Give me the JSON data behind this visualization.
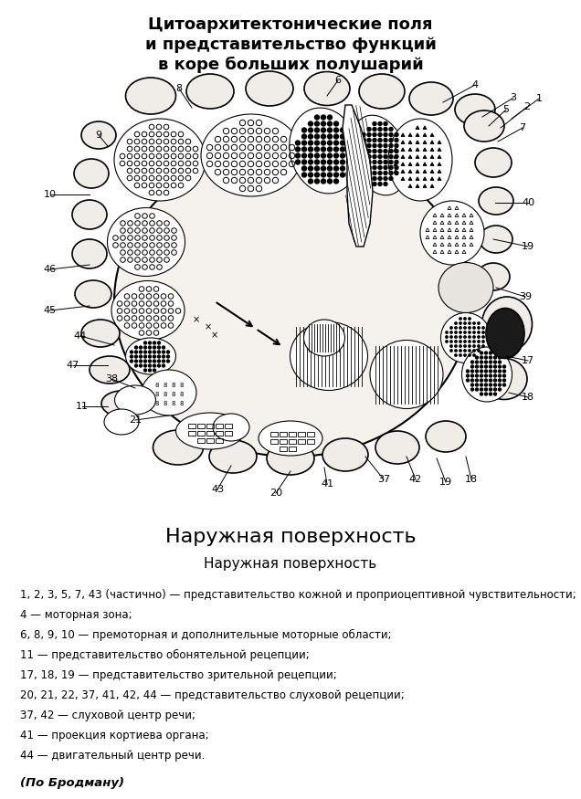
{
  "title_line1": "Цитоархитектонические поля",
  "title_line2": "и представительство функций",
  "title_line3": "в коре больших полушарий",
  "subtitle_large": "Наружная поверхность",
  "subtitle_small": "Наружная поверхность",
  "legend_lines": [
    "1, 2, 3, 5, 7, 43 (частично) — представительство кожной и проприоцептивной чувствительности;",
    "4 — моторная зона;",
    "6, 8, 9, 10 — премоторная и дополнительные моторные области;",
    "11 — представительство обонятельной рецепции;",
    "17, 18, 19 — представительство зрительной рецепции;",
    "20, 21, 22, 37, 41, 42, 44 — представительство слуховой рецепции;",
    "37, 42 — слуховой центр речи;",
    "41 — проекция кортиева органа;",
    "44 — двигательный центр речи."
  ],
  "footer": "(По Бродману)",
  "bg_color": "#ffffff",
  "text_color": "#000000",
  "fig_w": 6.36,
  "fig_h": 8.75,
  "dpi": 100
}
